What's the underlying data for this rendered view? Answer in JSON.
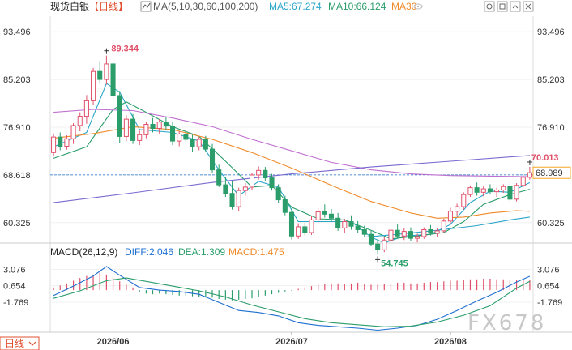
{
  "header": {
    "symbol": "现货白银",
    "period": "【日线】",
    "ma_label": "MA(5,10,30,60,100,200)",
    "ma5": "MA5:67.274",
    "ma10": "MA10:66.124",
    "ma30": "MA30"
  },
  "macd_header": {
    "label": "MACD(26,12,9)",
    "diff": "DIFF:2.046",
    "dea": "DEA:1.309",
    "macd": "MACD:1.475"
  },
  "period_button": "日线",
  "watermark": "FX678",
  "icons": [
    "candlestick-icon",
    "settings-icon",
    "window-icon",
    "expand-icon",
    "close-icon",
    "eye-icon"
  ],
  "colors": {
    "up": "#e0506a",
    "down": "#2a9d6a",
    "ma5": "#2aa6c9",
    "ma10": "#2a9d6a",
    "ma30": "#f08a2a",
    "ma60": "#c070d0",
    "ma100": "#7a6ad0",
    "diff": "#1e6fd0",
    "dea": "#2a9d6a",
    "price_line": "#1e6fd0",
    "price_tag": "#f5a623"
  },
  "chart_data": {
    "type": "candlestick",
    "price_axis": {
      "ticks": [
        "93.496",
        "85.203",
        "76.910",
        "68.618",
        "60.325"
      ],
      "range": [
        57.9,
        96.2
      ]
    },
    "x_labels": [
      "2026/06",
      "2026/07",
      "2026/08"
    ],
    "annotations": {
      "high": "89.344",
      "low": "54.745",
      "last": "70.013",
      "current_price": "68.989",
      "right_ref": "68.618"
    },
    "candles": [
      [
        72.5,
        75.8,
        71.8,
        75.2
      ],
      [
        75.2,
        76.0,
        72.9,
        73.6
      ],
      [
        73.6,
        75.5,
        73.0,
        74.9
      ],
      [
        74.9,
        77.6,
        74.0,
        77.2
      ],
      [
        77.2,
        79.5,
        76.2,
        78.8
      ],
      [
        78.8,
        82.5,
        77.5,
        81.5
      ],
      [
        81.5,
        87.2,
        80.8,
        86.6
      ],
      [
        86.6,
        88.4,
        84.5,
        85.2
      ],
      [
        85.2,
        89.344,
        84.3,
        87.9
      ],
      [
        87.9,
        88.6,
        81.5,
        82.4
      ],
      [
        82.4,
        83.2,
        74.2,
        75.3
      ],
      [
        75.3,
        79.0,
        74.5,
        78.3
      ],
      [
        78.3,
        79.2,
        74.0,
        74.6
      ],
      [
        74.6,
        76.3,
        73.8,
        75.6
      ],
      [
        75.6,
        77.9,
        75.0,
        77.4
      ],
      [
        77.4,
        78.5,
        76.0,
        76.7
      ],
      [
        76.7,
        78.3,
        75.8,
        77.8
      ],
      [
        77.8,
        78.7,
        76.5,
        77.1
      ],
      [
        77.1,
        77.9,
        73.8,
        74.5
      ],
      [
        74.5,
        76.2,
        73.6,
        75.7
      ],
      [
        75.7,
        76.5,
        74.2,
        74.8
      ],
      [
        74.8,
        75.6,
        72.6,
        73.5
      ],
      [
        73.5,
        75.2,
        72.9,
        74.8
      ],
      [
        74.8,
        75.4,
        72.7,
        73.1
      ],
      [
        73.1,
        74.0,
        69.0,
        69.5
      ],
      [
        69.5,
        70.4,
        66.5,
        66.9
      ],
      [
        66.9,
        68.3,
        64.8,
        65.4
      ],
      [
        65.4,
        67.5,
        62.6,
        63.1
      ],
      [
        63.1,
        66.4,
        62.4,
        65.9
      ],
      [
        65.9,
        67.2,
        65.0,
        66.5
      ],
      [
        66.5,
        69.0,
        66.0,
        68.6
      ],
      [
        68.6,
        70.1,
        67.8,
        69.4
      ],
      [
        69.4,
        70.0,
        67.6,
        68.1
      ],
      [
        68.1,
        68.8,
        65.9,
        66.4
      ],
      [
        66.4,
        67.0,
        63.8,
        64.3
      ],
      [
        64.3,
        65.0,
        61.6,
        62.1
      ],
      [
        62.1,
        62.8,
        57.4,
        58.0
      ],
      [
        58.0,
        60.2,
        57.5,
        59.6
      ],
      [
        59.6,
        60.3,
        58.1,
        58.6
      ],
      [
        58.6,
        61.5,
        58.2,
        60.8
      ],
      [
        60.8,
        62.8,
        60.3,
        62.2
      ],
      [
        62.2,
        63.5,
        61.2,
        61.8
      ],
      [
        61.8,
        62.7,
        60.5,
        61.1
      ],
      [
        61.1,
        62.0,
        58.9,
        59.4
      ],
      [
        59.4,
        61.0,
        58.6,
        60.5
      ],
      [
        60.5,
        61.6,
        59.1,
        59.7
      ],
      [
        59.7,
        60.6,
        58.6,
        59.1
      ],
      [
        59.1,
        59.8,
        57.8,
        58.3
      ],
      [
        58.3,
        58.9,
        56.2,
        56.6
      ],
      [
        56.6,
        57.3,
        54.745,
        55.6
      ],
      [
        55.6,
        57.8,
        55.2,
        57.3
      ],
      [
        57.3,
        59.5,
        56.9,
        59.0
      ],
      [
        59.0,
        60.0,
        57.6,
        58.0
      ],
      [
        58.0,
        59.3,
        57.3,
        58.8
      ],
      [
        58.8,
        59.5,
        57.1,
        57.6
      ],
      [
        57.6,
        58.4,
        56.9,
        57.9
      ],
      [
        57.9,
        59.5,
        57.5,
        59.1
      ],
      [
        59.1,
        59.9,
        58.1,
        58.5
      ],
      [
        58.5,
        59.4,
        57.9,
        58.9
      ],
      [
        58.9,
        61.0,
        58.5,
        60.6
      ],
      [
        60.6,
        62.9,
        60.1,
        62.3
      ],
      [
        62.3,
        63.6,
        61.5,
        63.1
      ],
      [
        63.1,
        65.6,
        62.6,
        65.2
      ],
      [
        65.2,
        66.8,
        64.8,
        66.4
      ],
      [
        66.4,
        67.3,
        65.0,
        65.6
      ],
      [
        65.6,
        66.7,
        64.9,
        66.2
      ],
      [
        66.2,
        67.0,
        65.2,
        65.7
      ],
      [
        65.7,
        66.4,
        64.8,
        66.0
      ],
      [
        66.0,
        67.0,
        65.5,
        66.6
      ],
      [
        66.6,
        67.4,
        63.9,
        64.4
      ],
      [
        64.4,
        67.2,
        64.0,
        66.8
      ],
      [
        66.8,
        68.6,
        66.4,
        68.2
      ],
      [
        68.2,
        70.013,
        67.8,
        69.0
      ]
    ],
    "ma": {
      "ma5": [
        [
          0,
          73.5
        ],
        [
          5,
          76.0
        ],
        [
          8,
          84.5
        ],
        [
          10,
          83.0
        ],
        [
          13,
          76.5
        ],
        [
          18,
          76.0
        ],
        [
          22,
          74.5
        ],
        [
          25,
          69.5
        ],
        [
          28,
          65.0
        ],
        [
          31,
          67.5
        ],
        [
          34,
          66.5
        ],
        [
          37,
          60.5
        ],
        [
          41,
          60.5
        ],
        [
          45,
          60.5
        ],
        [
          48,
          57.8
        ],
        [
          50,
          56.8
        ],
        [
          53,
          58.0
        ],
        [
          57,
          58.3
        ],
        [
          60,
          60.0
        ],
        [
          63,
          63.8
        ],
        [
          66,
          65.8
        ],
        [
          69,
          65.6
        ],
        [
          72,
          67.274
        ]
      ],
      "ma10": [
        [
          0,
          71.5
        ],
        [
          5,
          73.5
        ],
        [
          9,
          80.0
        ],
        [
          11,
          81.3
        ],
        [
          14,
          79.5
        ],
        [
          18,
          77.0
        ],
        [
          22,
          75.3
        ],
        [
          26,
          71.0
        ],
        [
          30,
          66.5
        ],
        [
          33,
          66.8
        ],
        [
          36,
          63.0
        ],
        [
          40,
          61.0
        ],
        [
          44,
          60.8
        ],
        [
          48,
          59.0
        ],
        [
          51,
          57.5
        ],
        [
          55,
          58.0
        ],
        [
          59,
          58.6
        ],
        [
          62,
          60.5
        ],
        [
          65,
          63.5
        ],
        [
          69,
          65.2
        ],
        [
          72,
          66.124
        ]
      ],
      "ma30": [
        [
          0,
          75.0
        ],
        [
          6,
          75.8
        ],
        [
          12,
          77.0
        ],
        [
          18,
          76.5
        ],
        [
          24,
          74.8
        ],
        [
          30,
          72.5
        ],
        [
          36,
          69.8
        ],
        [
          42,
          66.8
        ],
        [
          48,
          64.0
        ],
        [
          54,
          62.0
        ],
        [
          58,
          61.1
        ],
        [
          62,
          61.3
        ],
        [
          66,
          62.0
        ],
        [
          70,
          62.4
        ],
        [
          72,
          62.3
        ]
      ],
      "ma60": [
        [
          0,
          79.5
        ],
        [
          6,
          80.0
        ],
        [
          12,
          79.8
        ],
        [
          18,
          78.5
        ],
        [
          24,
          77.0
        ],
        [
          30,
          74.8
        ],
        [
          36,
          72.8
        ],
        [
          42,
          70.8
        ],
        [
          48,
          69.5
        ],
        [
          54,
          68.8
        ],
        [
          60,
          68.5
        ],
        [
          66,
          68.4
        ],
        [
          72,
          68.3
        ]
      ],
      "ma100": [
        [
          0,
          63.8
        ],
        [
          12,
          65.5
        ],
        [
          24,
          67.3
        ],
        [
          36,
          68.8
        ],
        [
          48,
          70.0
        ],
        [
          60,
          71.0
        ],
        [
          72,
          72.0
        ]
      ],
      "ma120": [
        [
          47,
          57.8
        ],
        [
          52,
          58.3
        ],
        [
          58,
          59.0
        ],
        [
          64,
          59.8
        ],
        [
          69,
          60.8
        ],
        [
          72,
          61.3
        ]
      ]
    },
    "macd_axis": {
      "ticks": [
        "3.076",
        "0.654",
        "-1.769"
      ],
      "range": [
        -6.2,
        4.8
      ]
    },
    "macd": {
      "diff": [
        [
          0,
          -0.8
        ],
        [
          3,
          0.6
        ],
        [
          6,
          2.1
        ],
        [
          8,
          3.5
        ],
        [
          10,
          2.2
        ],
        [
          13,
          0.4
        ],
        [
          16,
          0.0
        ],
        [
          19,
          -0.2
        ],
        [
          22,
          -0.6
        ],
        [
          25,
          -1.8
        ],
        [
          28,
          -3.0
        ],
        [
          31,
          -3.3
        ],
        [
          34,
          -3.8
        ],
        [
          37,
          -4.8
        ],
        [
          40,
          -5.2
        ],
        [
          43,
          -5.4
        ],
        [
          46,
          -5.6
        ],
        [
          49,
          -5.9
        ],
        [
          52,
          -5.6
        ],
        [
          55,
          -5.2
        ],
        [
          58,
          -4.3
        ],
        [
          61,
          -3.0
        ],
        [
          64,
          -1.6
        ],
        [
          67,
          -0.3
        ],
        [
          70,
          1.2
        ],
        [
          72,
          2.046
        ]
      ],
      "dea": [
        [
          0,
          -1.2
        ],
        [
          4,
          -0.1
        ],
        [
          8,
          1.4
        ],
        [
          11,
          1.8
        ],
        [
          14,
          1.3
        ],
        [
          18,
          0.6
        ],
        [
          22,
          -0.1
        ],
        [
          26,
          -1.0
        ],
        [
          30,
          -2.2
        ],
        [
          34,
          -3.2
        ],
        [
          38,
          -4.2
        ],
        [
          42,
          -4.8
        ],
        [
          46,
          -5.1
        ],
        [
          50,
          -5.4
        ],
        [
          54,
          -5.3
        ],
        [
          58,
          -4.7
        ],
        [
          62,
          -3.7
        ],
        [
          66,
          -2.3
        ],
        [
          70,
          0.3
        ],
        [
          72,
          1.309
        ]
      ],
      "hist": [
        0.4,
        0.7,
        1.0,
        1.4,
        1.8,
        2.1,
        2.3,
        2.6,
        2.3,
        1.8,
        1.3,
        0.8,
        0.4,
        -0.2,
        -0.5,
        -0.6,
        -0.5,
        -0.6,
        -0.7,
        -0.8,
        -0.8,
        -0.9,
        -1.0,
        -1.0,
        -1.1,
        -1.3,
        -1.4,
        -1.5,
        -1.4,
        -1.3,
        -1.2,
        -1.0,
        -0.8,
        -0.6,
        -0.4,
        -0.2,
        -0.1,
        0.2,
        0.4,
        0.6,
        0.8,
        0.9,
        1.0,
        1.0,
        0.9,
        1.0,
        1.1,
        0.9,
        0.8,
        0.8,
        0.9,
        1.0,
        1.1,
        1.1,
        1.0,
        1.0,
        1.1,
        1.2,
        1.2,
        1.3,
        1.4,
        1.4,
        1.5,
        1.6,
        1.6,
        1.7,
        1.7,
        1.6,
        1.6,
        1.5,
        1.5,
        1.5,
        1.475
      ]
    }
  }
}
